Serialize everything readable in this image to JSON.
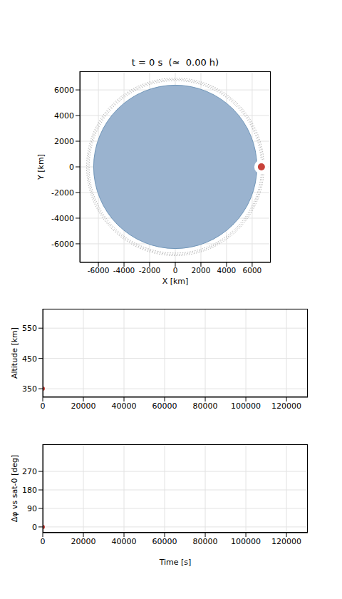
{
  "chart_data": [
    {
      "type": "scatter",
      "title": "t = 0 s  (≈  0.00 h)",
      "x_label": "X [km]",
      "y_label": "Y [km]",
      "xlim": [
        -7450,
        7450
      ],
      "ylim": [
        -7450,
        7450
      ],
      "xticks": [
        -6000,
        -4000,
        -2000,
        0,
        2000,
        4000,
        6000
      ],
      "yticks": [
        -6000,
        -4000,
        -2000,
        0,
        2000,
        4000,
        6000
      ],
      "grid": true,
      "earth_center": [
        0,
        0
      ],
      "earth_radius": 6371,
      "earth_color": "#9ab3cf",
      "orbit_radii": [
        6721,
        6821,
        6921
      ],
      "x": [
        6721
      ],
      "values": [
        0
      ],
      "color": "#c8423a",
      "marker": "circle"
    },
    {
      "type": "scatter",
      "y_label": "Altitude [km]",
      "xlim": [
        0,
        130500
      ],
      "ylim": [
        322,
        614
      ],
      "xticks": [
        0,
        20000,
        40000,
        60000,
        80000,
        100000,
        120000
      ],
      "yticks": [
        350,
        450,
        550
      ],
      "grid": true,
      "x": [
        0
      ],
      "values": [
        350
      ],
      "color": "#c8423a",
      "marker": "circle"
    },
    {
      "type": "scatter",
      "x_label": "Time [s]",
      "y_label": "Δφ vs sat-0 [deg]",
      "xlim": [
        0,
        130500
      ],
      "ylim": [
        -28,
        402
      ],
      "xticks": [
        0,
        20000,
        40000,
        60000,
        80000,
        100000,
        120000
      ],
      "yticks": [
        0,
        90,
        180,
        270
      ],
      "grid": true,
      "x": [
        0
      ],
      "values": [
        0
      ],
      "color": "#c8423a",
      "marker": "circle"
    }
  ]
}
